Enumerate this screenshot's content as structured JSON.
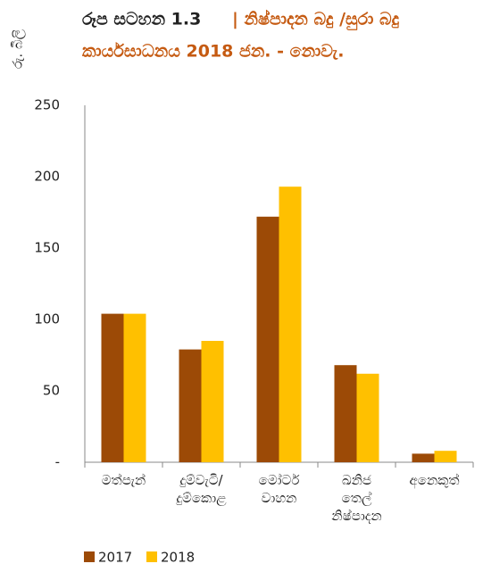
{
  "chart_data": {
    "type": "bar",
    "title": [
      "රූප සටහන 1.3",
      "| නිෂ්පාදන බදු /සුරා බදු",
      "කාර්යසාධනය 2018 ජන. - නොවැ."
    ],
    "y_label": "රු. බිලි",
    "categories": [
      "මත්පැන්",
      "දුම්වැටි/ දුම්කොළ",
      "මෝටර් වාහන",
      "ඛනිජ තෙල් නිෂ්පාදන",
      "අනෙකුත්"
    ],
    "series": [
      {
        "name": "2017",
        "color": "#9c4a06",
        "values": [
          104,
          79,
          172,
          68,
          6
        ]
      },
      {
        "name": "2018",
        "color": "#ffc000",
        "values": [
          104,
          85,
          193,
          62,
          8
        ]
      }
    ],
    "ylim": [
      0,
      250
    ],
    "yticks": [
      {
        "value": 0,
        "label": "-"
      },
      50,
      100,
      150,
      200,
      250
    ]
  }
}
